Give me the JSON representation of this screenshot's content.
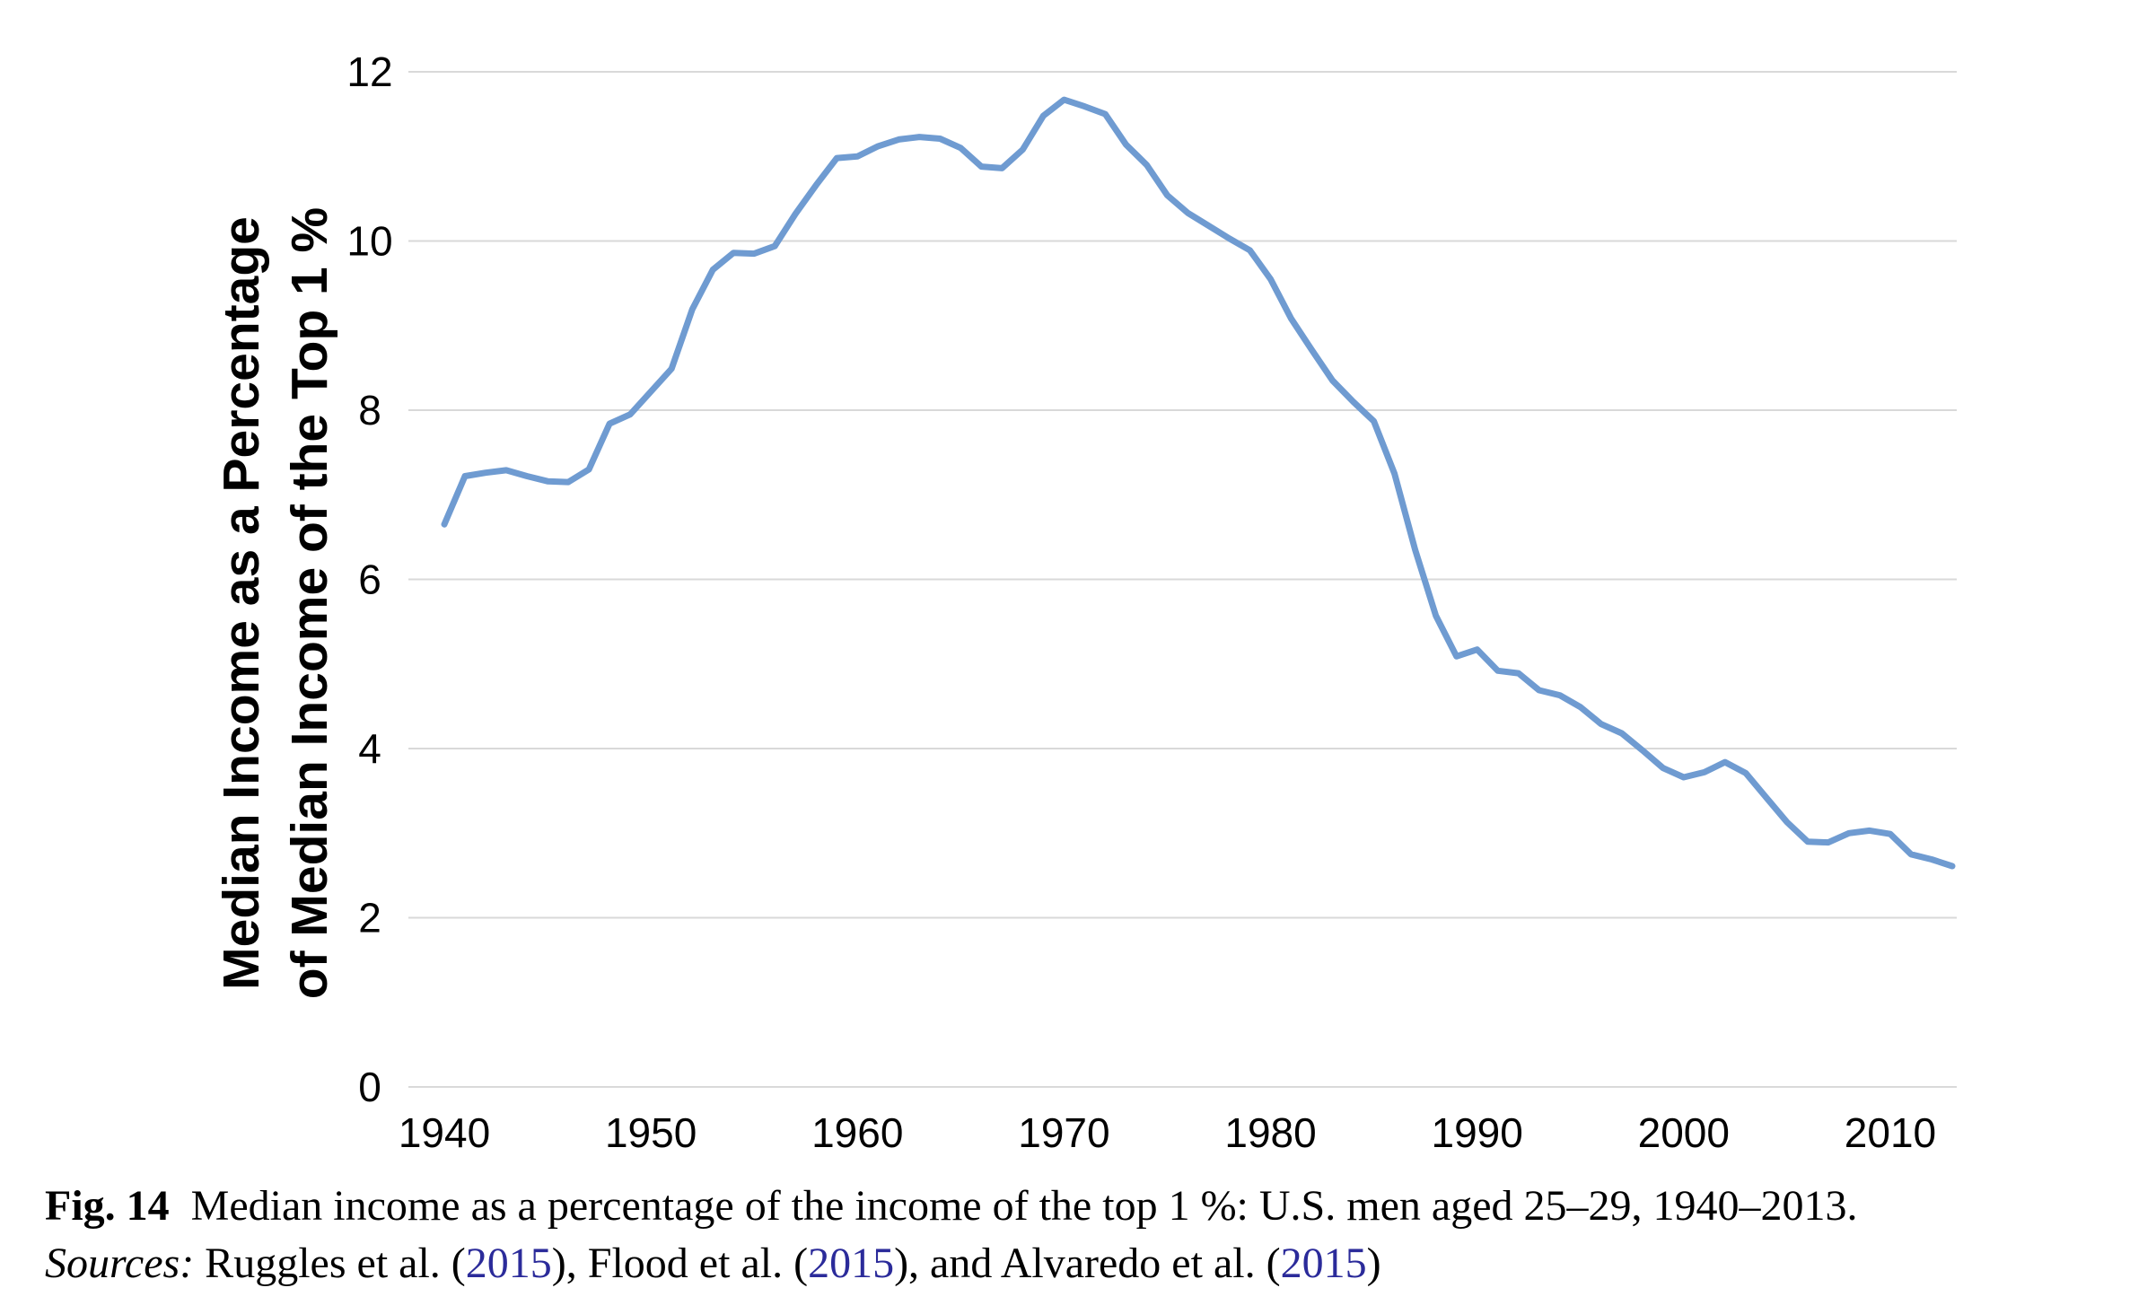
{
  "chart_data": {
    "type": "line",
    "title": "",
    "xlabel": "",
    "ylabel_lines": [
      "Median Income as a Percentage",
      "of Median Income of the Top 1 %"
    ],
    "xlim": [
      1940,
      2013
    ],
    "ylim": [
      0,
      12
    ],
    "x_ticks": [
      1940,
      1950,
      1960,
      1970,
      1980,
      1990,
      2000,
      2010
    ],
    "y_ticks": [
      0,
      2,
      4,
      6,
      8,
      10,
      12
    ],
    "grid": true,
    "legend": "none",
    "line_color": "#6f9bd1",
    "grid_color": "#d9d9d9",
    "series": [
      {
        "x": [
          1940,
          1941,
          1942,
          1943,
          1944,
          1945,
          1946,
          1947,
          1948,
          1949,
          1950,
          1951,
          1952,
          1953,
          1954,
          1955,
          1956,
          1957,
          1958,
          1959,
          1960,
          1961,
          1962,
          1963,
          1964,
          1965,
          1966,
          1967,
          1968,
          1969,
          1970,
          1971,
          1972,
          1973,
          1974,
          1975,
          1976,
          1977,
          1978,
          1979,
          1980,
          1981,
          1982,
          1983,
          1984,
          1985,
          1986,
          1987,
          1988,
          1989,
          1990,
          1991,
          1992,
          1993,
          1994,
          1995,
          1996,
          1997,
          1998,
          1999,
          2000,
          2001,
          2002,
          2003,
          2004,
          2005,
          2006,
          2007,
          2008,
          2009,
          2010,
          2011,
          2012,
          2013
        ],
        "values": [
          6.65,
          7.22,
          7.26,
          7.29,
          7.22,
          7.16,
          7.15,
          7.3,
          7.84,
          7.95,
          8.22,
          8.49,
          9.19,
          9.66,
          9.86,
          9.85,
          9.94,
          10.32,
          10.66,
          10.98,
          11.0,
          11.12,
          11.2,
          11.23,
          11.21,
          11.1,
          10.88,
          10.86,
          11.08,
          11.48,
          11.67,
          11.59,
          11.5,
          11.14,
          10.9,
          10.54,
          10.33,
          10.18,
          10.03,
          9.89,
          9.55,
          9.08,
          8.71,
          8.35,
          8.1,
          7.87,
          7.25,
          6.35,
          5.57,
          5.09,
          5.17,
          4.92,
          4.89,
          4.69,
          4.63,
          4.49,
          4.29,
          4.18,
          3.98,
          3.77,
          3.66,
          3.72,
          3.84,
          3.71,
          3.42,
          3.13,
          2.9,
          2.89,
          3.0,
          3.03,
          2.99,
          2.75,
          2.69,
          2.61
        ]
      }
    ]
  },
  "caption": {
    "fig_label": "Fig. 14",
    "text": "Median income as a percentage of the income of the top 1 %: U.S. men aged 25–29, 1940–2013.",
    "sources_label": "Sources:",
    "sources_part1": " Ruggles et al. (",
    "ref1_year": "2015",
    "sources_part2": "), Flood et al. (",
    "ref2_year": "2015",
    "sources_part3": "), and Alvaredo et al. (",
    "ref3_year": "2015",
    "sources_part4": ")"
  }
}
